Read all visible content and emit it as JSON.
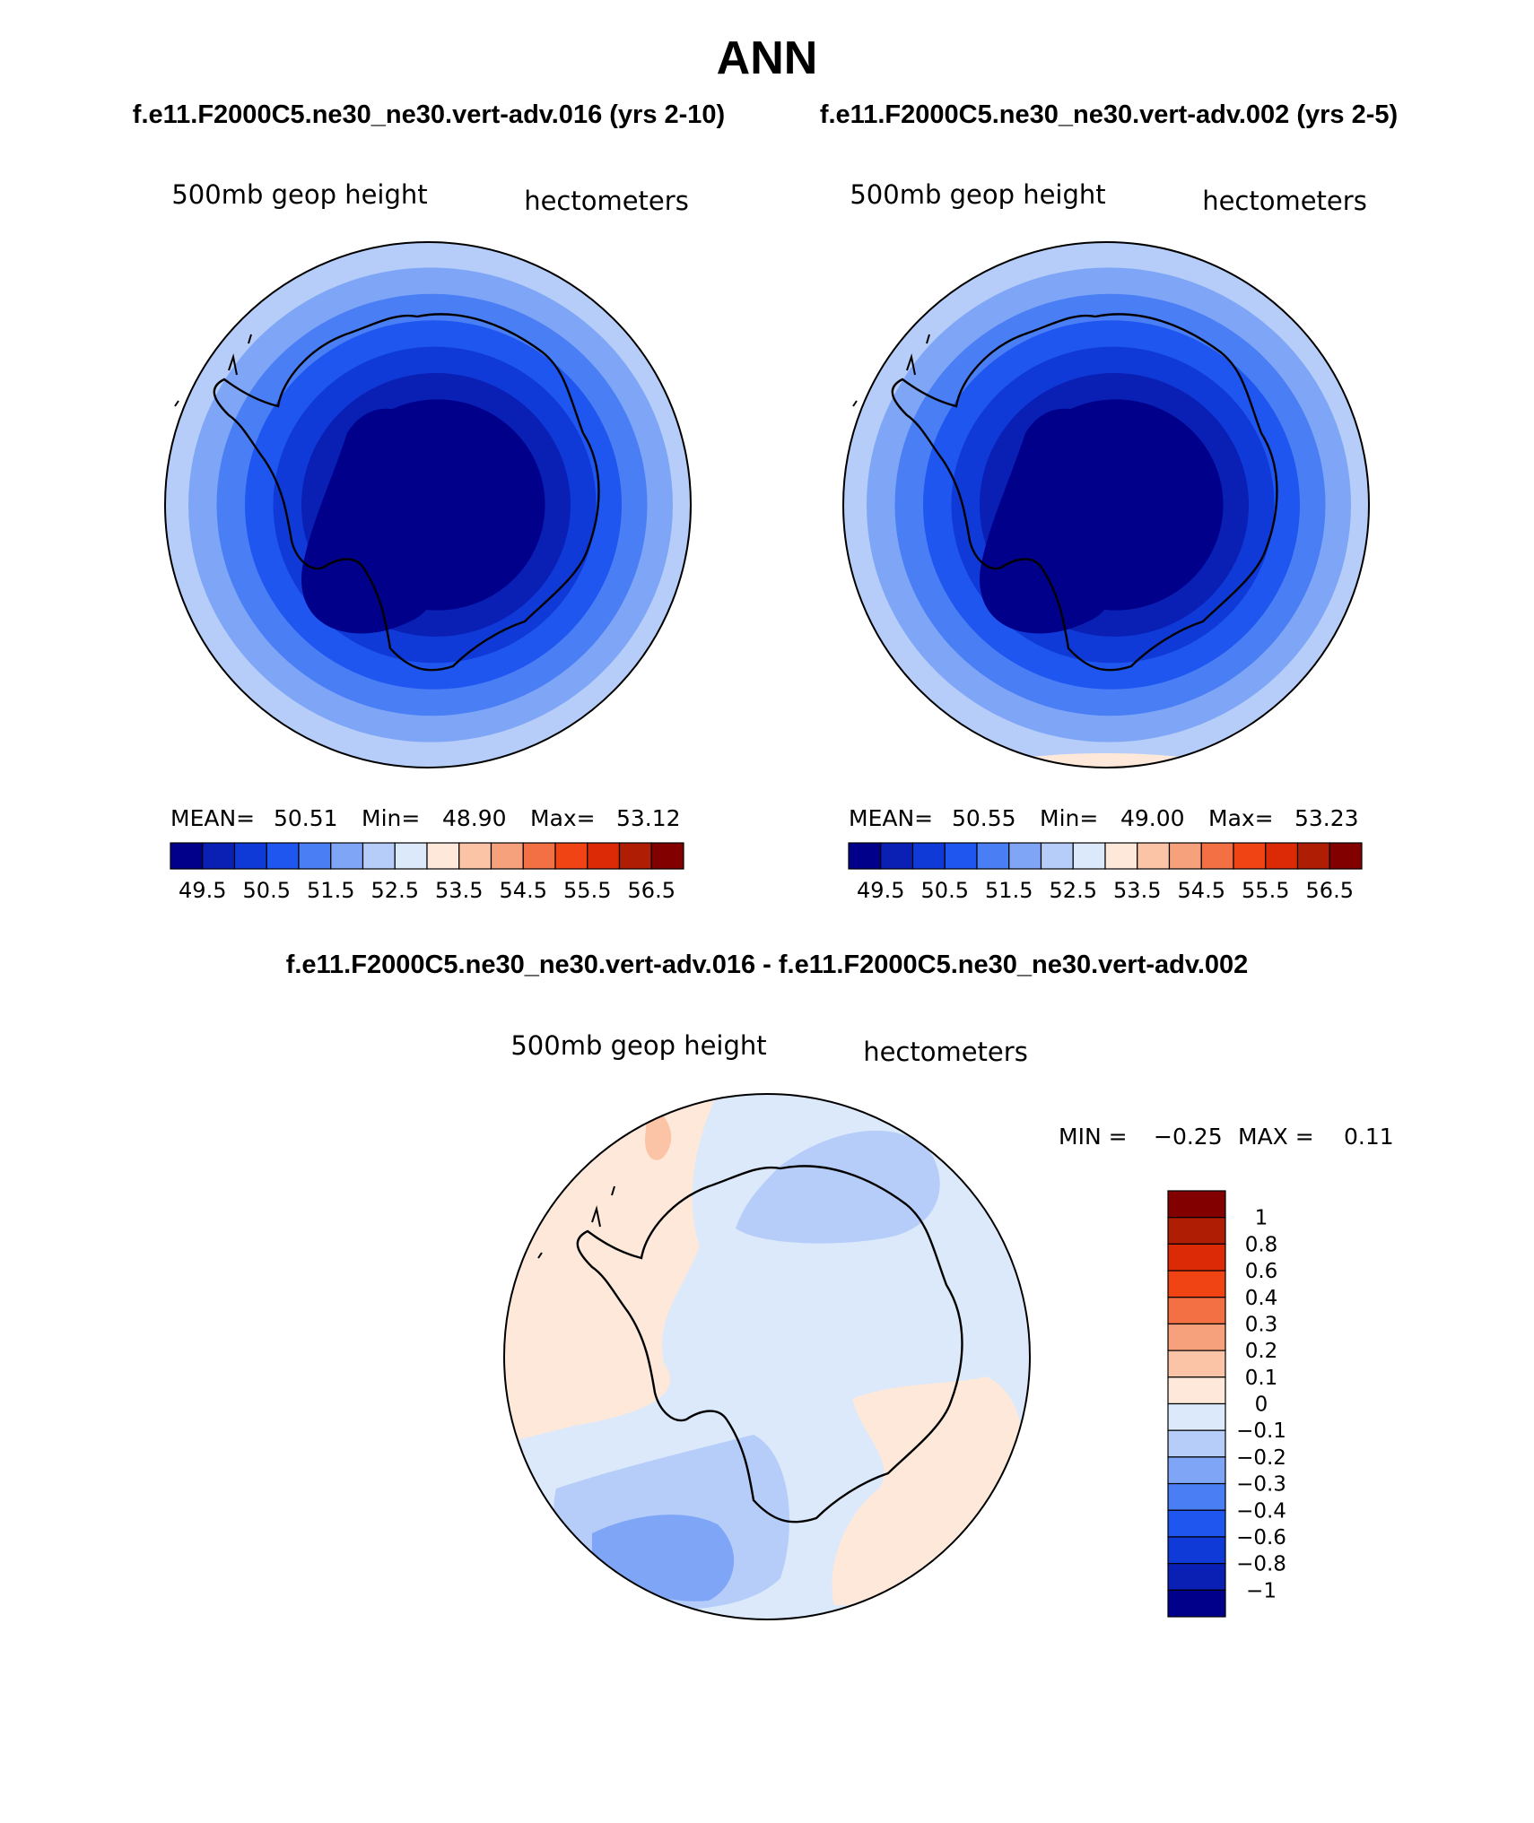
{
  "title": "ANN",
  "colors": {
    "seq": [
      "#00008b",
      "#0a1fb4",
      "#0f3ad8",
      "#1f56f0",
      "#4a7ef5",
      "#7fa6f6",
      "#b5cdf8",
      "#dbe9fb",
      "#fde8da",
      "#fbc4a6",
      "#f6a07c",
      "#f27043",
      "#f04415",
      "#db2a05",
      "#b01d05",
      "#820000"
    ],
    "diff": [
      "#820000",
      "#b01d05",
      "#db2a05",
      "#f04415",
      "#f27043",
      "#f6a07c",
      "#fbc4a6",
      "#fde8da",
      "#dbe9fb",
      "#b5cdf8",
      "#7fa6f6",
      "#4a7ef5",
      "#1f56f0",
      "#0f3ad8",
      "#0a1fb4",
      "#00008b"
    ]
  },
  "panels": [
    {
      "id": "left",
      "header": "f.e11.F2000C5.ne30_ne30.vert-adv.016 (yrs 2-10)",
      "variable": "500mb geop height",
      "units": "hectometers",
      "stats": {
        "mean_label": "MEAN=",
        "mean": "50.51",
        "min_label": "Min=",
        "min": "48.90",
        "max_label": "Max=",
        "max": "53.12"
      },
      "colorbar_labels": [
        "49.5",
        "50.5",
        "51.5",
        "52.5",
        "53.5",
        "54.5",
        "55.5",
        "56.5"
      ],
      "rings": [
        0,
        1,
        2,
        3,
        4,
        5,
        6,
        7
      ]
    },
    {
      "id": "right",
      "header": "f.e11.F2000C5.ne30_ne30.vert-adv.002 (yrs 2-5)",
      "variable": "500mb geop height",
      "units": "hectometers",
      "stats": {
        "mean_label": "MEAN=",
        "mean": "50.55",
        "min_label": "Min=",
        "min": "49.00",
        "max_label": "Max=",
        "max": "53.23"
      },
      "colorbar_labels": [
        "49.5",
        "50.5",
        "51.5",
        "52.5",
        "53.5",
        "54.5",
        "55.5",
        "56.5"
      ],
      "rings": [
        0,
        1,
        2,
        3,
        4,
        5,
        6,
        7
      ]
    },
    {
      "id": "diff",
      "header": "f.e11.F2000C5.ne30_ne30.vert-adv.016 - f.e11.F2000C5.ne30_ne30.vert-adv.002",
      "variable": "500mb geop height",
      "units": "hectometers",
      "stats": {
        "min_label": "MIN =",
        "min": "−0.25",
        "max_label": "MAX =",
        "max": "0.11"
      },
      "colorbar_labels": [
        "1",
        "0.8",
        "0.6",
        "0.4",
        "0.3",
        "0.2",
        "0.1",
        "0",
        "−0.1",
        "−0.2",
        "−0.3",
        "−0.4",
        "−0.6",
        "−0.8",
        "−1"
      ]
    }
  ]
}
